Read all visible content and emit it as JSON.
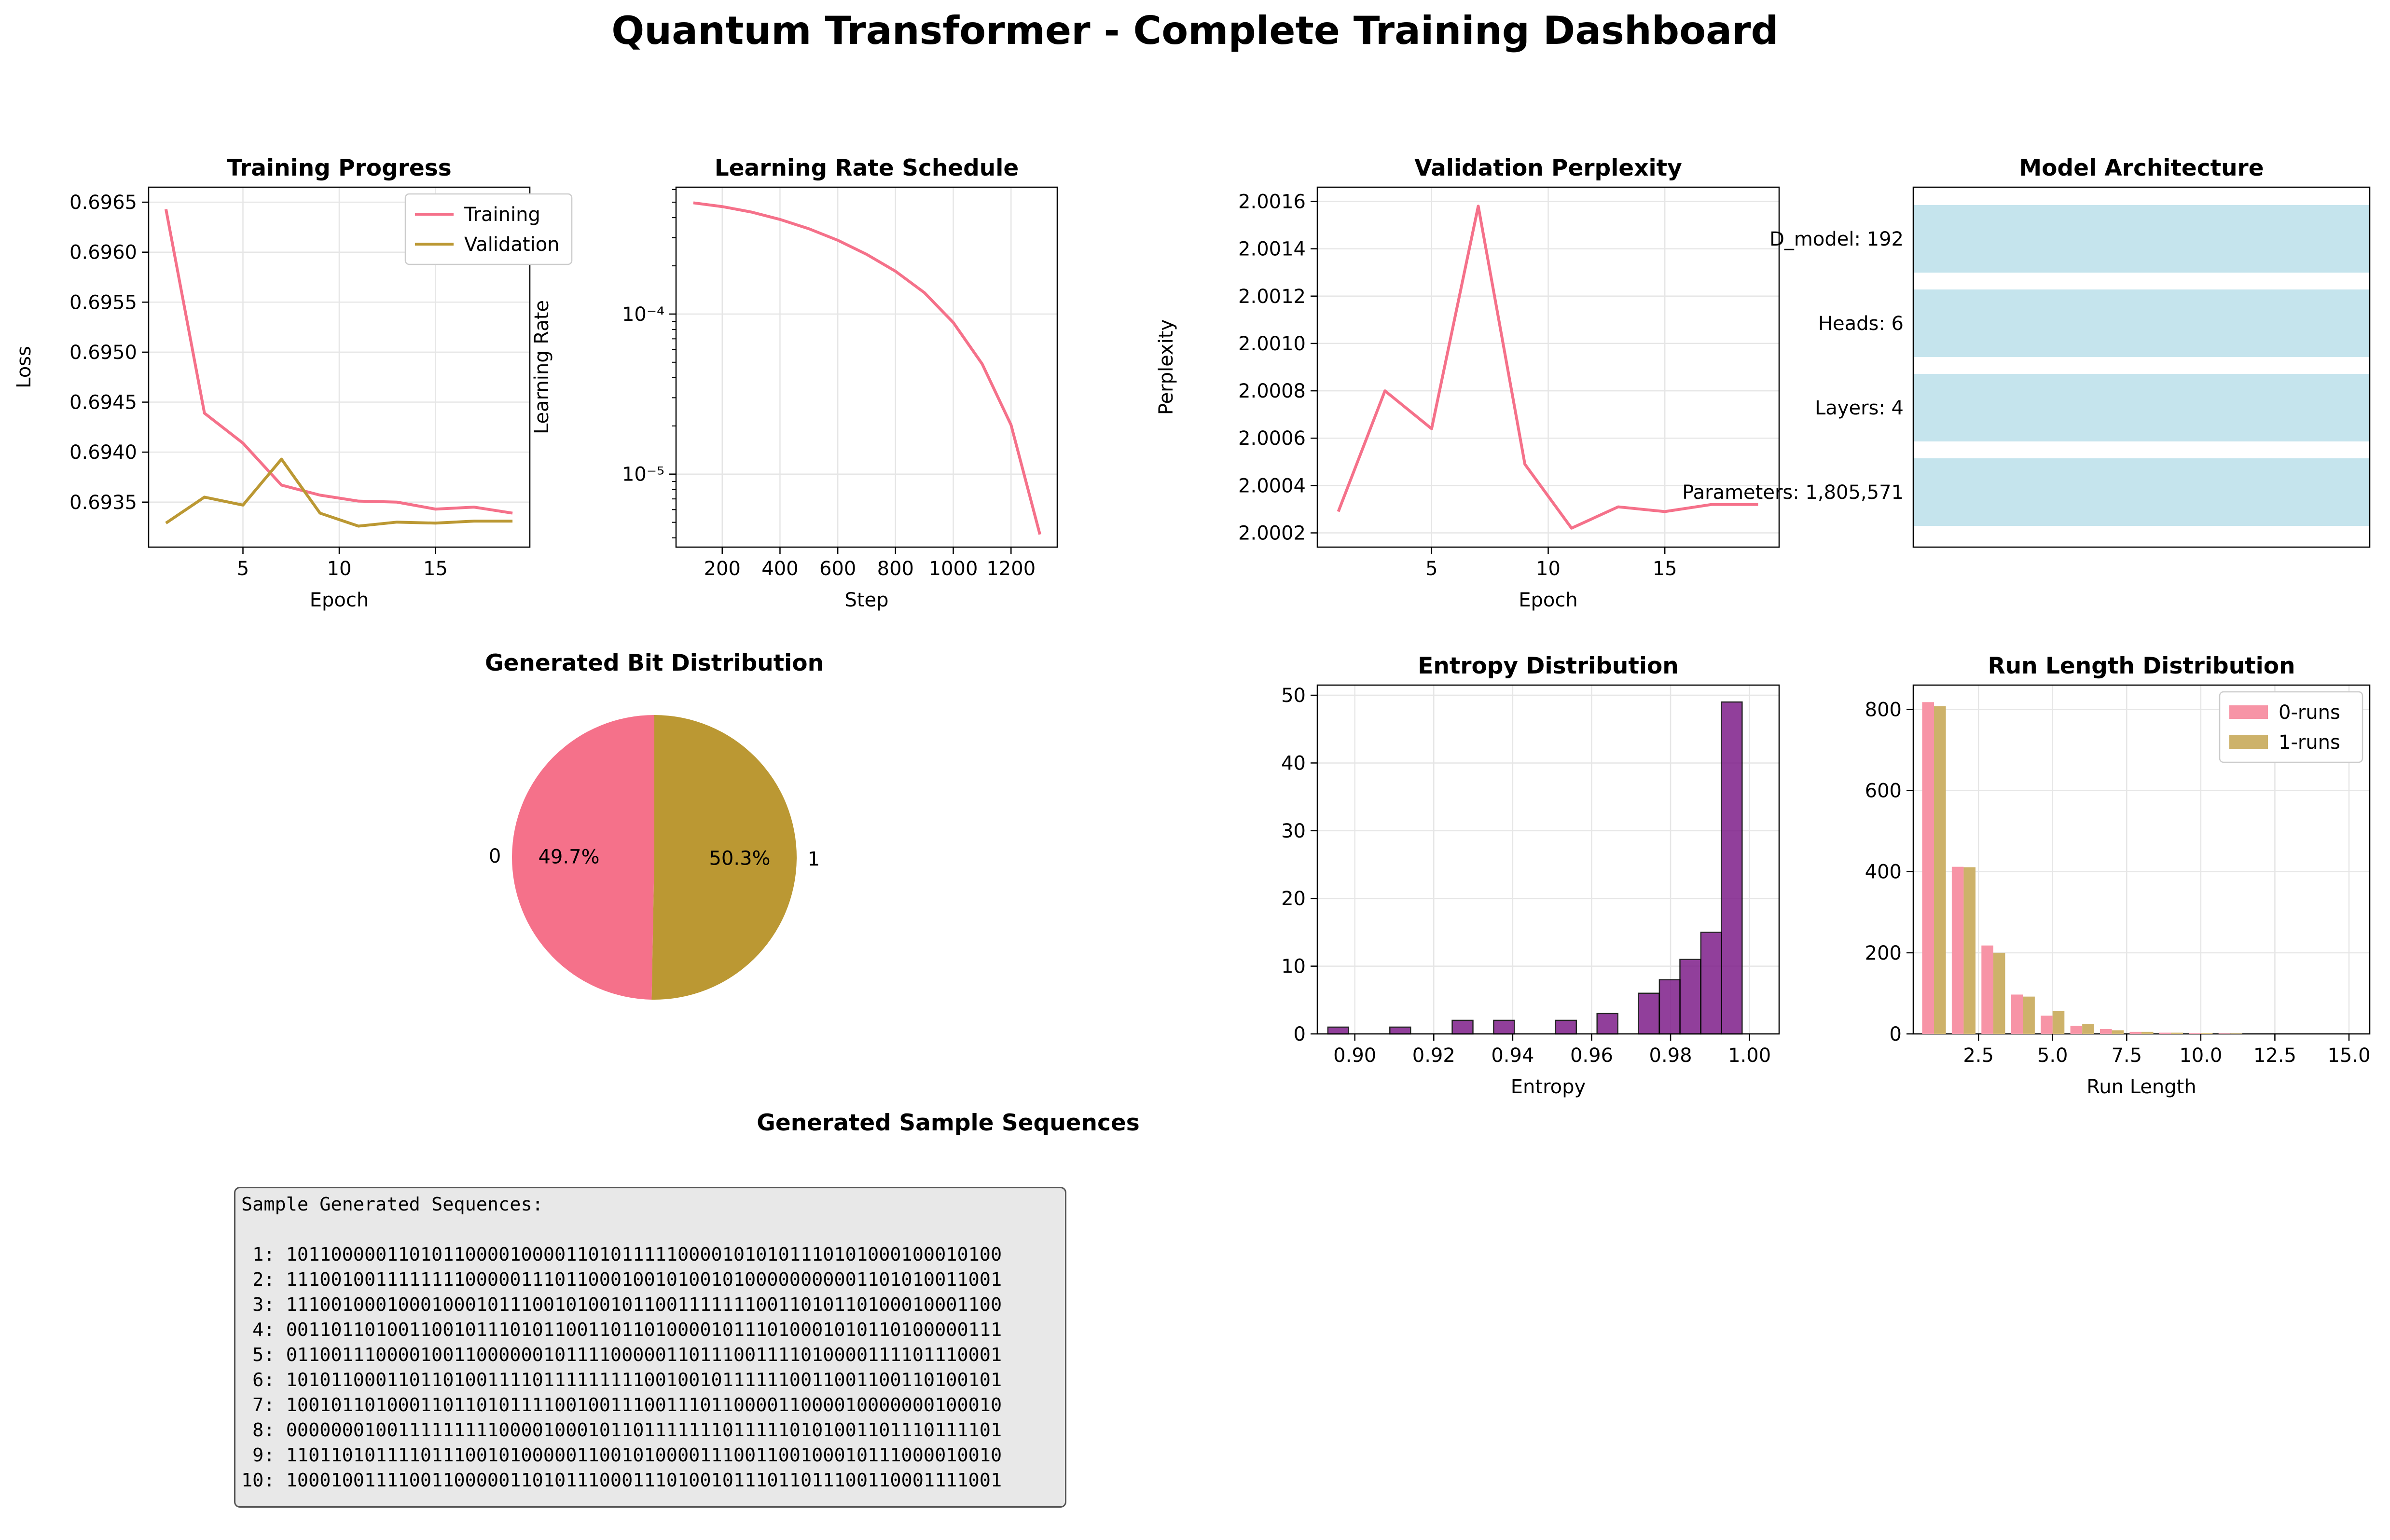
{
  "page_title": "Quantum Transformer - Complete Training Dashboard",
  "colors": {
    "pink": "#f5718a",
    "olive": "#bb9833",
    "purple": "#7e1e8a",
    "lightblue": "#add8e6",
    "grid": "#e6e6e6"
  },
  "chart_data": [
    {
      "id": "training",
      "type": "line",
      "title": "Training Progress",
      "xlabel": "Epoch",
      "ylabel": "Loss",
      "xlim": [
        0.1,
        19.9
      ],
      "ylim": [
        0.69305,
        0.69665
      ],
      "xticks": [
        5,
        10,
        15
      ],
      "yticks": [
        0.6935,
        0.694,
        0.6945,
        0.695,
        0.6955,
        0.696,
        0.6965
      ],
      "ytick_labels": [
        "0.6935",
        "0.6940",
        "0.6945",
        "0.6950",
        "0.6955",
        "0.6960",
        "0.6965"
      ],
      "x": [
        1,
        3,
        5,
        7,
        9,
        11,
        13,
        15,
        17,
        19
      ],
      "series": [
        {
          "name": "Training",
          "color": "#f5718a",
          "values": [
            0.69643,
            0.69439,
            0.69409,
            0.69367,
            0.69357,
            0.69351,
            0.6935,
            0.69343,
            0.69345,
            0.69339
          ]
        },
        {
          "name": "Validation",
          "color": "#bb9833",
          "values": [
            0.69329,
            0.69355,
            0.69347,
            0.69393,
            0.69339,
            0.69326,
            0.6933,
            0.69329,
            0.69331,
            0.69331
          ]
        }
      ],
      "legend": "top-right"
    },
    {
      "id": "lr",
      "type": "line",
      "title": "Learning Rate Schedule",
      "xlabel": "Step",
      "ylabel": "Learning Rate",
      "yscale": "log",
      "xlim": [
        40,
        1360
      ],
      "ylim": [
        3.5e-06,
        0.00062
      ],
      "xticks": [
        200,
        400,
        600,
        800,
        1000,
        1200
      ],
      "yticks": [
        1e-05,
        0.0001
      ],
      "ytick_labels": [
        "10⁻⁵",
        "10⁻⁴"
      ],
      "x": [
        100,
        200,
        300,
        400,
        500,
        600,
        700,
        800,
        900,
        1000,
        1100,
        1200,
        1300
      ],
      "series": [
        {
          "name": "",
          "color": "#f5718a",
          "values": [
            0.000495,
            0.000469,
            0.000434,
            0.00039,
            0.000341,
            0.000289,
            0.000236,
            0.000185,
            0.000136,
            8.85e-05,
            4.88e-05,
            2.03e-05,
            4.2e-06
          ]
        }
      ]
    },
    {
      "id": "perplexity",
      "type": "line",
      "title": "Validation Perplexity",
      "xlabel": "Epoch",
      "ylabel": "Perplexity",
      "xlim": [
        0.1,
        19.9
      ],
      "ylim": [
        2.00014,
        2.00166
      ],
      "xticks": [
        5,
        10,
        15
      ],
      "yticks": [
        2.0002,
        2.0004,
        2.0006,
        2.0008,
        2.001,
        2.0012,
        2.0014,
        2.0016
      ],
      "ytick_labels": [
        "2.0002",
        "2.0004",
        "2.0006",
        "2.0008",
        "2.0010",
        "2.0012",
        "2.0014",
        "2.0016"
      ],
      "x": [
        1,
        3,
        5,
        7,
        9,
        11,
        13,
        15,
        17,
        19
      ],
      "series": [
        {
          "name": "",
          "color": "#f5718a",
          "values": [
            2.00029,
            2.0008,
            2.00064,
            2.00158,
            2.00049,
            2.00022,
            2.00031,
            2.00029,
            2.00032,
            2.00032
          ]
        }
      ]
    },
    {
      "id": "architecture",
      "type": "bar",
      "title": "Model Architecture",
      "orientation": "horizontal",
      "categories": [
        "D_model: 192",
        "Heads: 6",
        "Layers: 4",
        "Parameters: 1,805,571"
      ],
      "values": [
        1,
        1,
        1,
        1
      ],
      "color": "#add8e6"
    },
    {
      "id": "bits",
      "type": "pie",
      "title": "Generated Bit Distribution",
      "slices": [
        {
          "label": "0",
          "value": 49.7,
          "pct_label": "49.7%",
          "color": "#f5718a"
        },
        {
          "label": "1",
          "value": 50.3,
          "pct_label": "50.3%",
          "color": "#bb9833"
        }
      ]
    },
    {
      "id": "entropy",
      "type": "bar",
      "title": "Entropy Distribution",
      "xlabel": "Entropy",
      "xlim": [
        0.8905,
        1.0075
      ],
      "ylim": [
        0,
        51.5
      ],
      "xticks": [
        0.9,
        0.92,
        0.94,
        0.96,
        0.98,
        1.0
      ],
      "xtick_labels": [
        "0.90",
        "0.92",
        "0.94",
        "0.96",
        "0.98",
        "1.00"
      ],
      "yticks": [
        0,
        10,
        20,
        30,
        40,
        50
      ],
      "bin_width": 0.00525,
      "bins": [
        0.8958,
        0.901,
        0.9063,
        0.9115,
        0.9168,
        0.922,
        0.9273,
        0.9325,
        0.9378,
        0.943,
        0.9483,
        0.9535,
        0.9588,
        0.964,
        0.9693,
        0.9745,
        0.9798,
        0.985,
        0.9903,
        0.9955
      ],
      "counts": [
        1,
        0,
        0,
        1,
        0,
        0,
        2,
        0,
        2,
        0,
        0,
        2,
        0,
        3,
        0,
        6,
        8,
        11,
        15,
        49
      ],
      "color": "#7e1e8a"
    },
    {
      "id": "runs",
      "type": "bar",
      "title": "Run Length Distribution",
      "xlabel": "Run Length",
      "xlim": [
        0.3,
        15.7
      ],
      "ylim": [
        0,
        860
      ],
      "xticks": [
        2.5,
        5.0,
        7.5,
        10.0,
        12.5,
        15.0
      ],
      "xtick_labels": [
        "2.5",
        "5.0",
        "7.5",
        "10.0",
        "12.5",
        "15.0"
      ],
      "yticks": [
        0,
        200,
        400,
        600,
        800
      ],
      "categories": [
        1,
        2,
        3,
        4,
        5,
        6,
        7,
        8,
        9,
        10,
        11,
        12,
        13,
        14,
        15
      ],
      "series": [
        {
          "name": "0-runs",
          "color": "#f794a6",
          "values": [
            818,
            412,
            218,
            97,
            45,
            20,
            12,
            5,
            3,
            2,
            1,
            0,
            0,
            0,
            0
          ]
        },
        {
          "name": "1-runs",
          "color": "#cdb26a",
          "values": [
            808,
            411,
            200,
            92,
            56,
            25,
            9,
            5,
            3,
            2,
            1,
            0,
            0,
            0,
            0
          ]
        }
      ],
      "legend": "top-right"
    }
  ],
  "samples": {
    "title": "Generated Sample Sequences",
    "header": "Sample Generated Sequences:",
    "lines": [
      " 1: 1011000001101011000010000110101111100001010101110101000100010100",
      " 2: 1110010011111111000001110110001001010010100000000001101010011001",
      " 3: 1110010001000100010111001010010110011111110011010110100010001100",
      " 4: 0011011010011001011101011001101101000010111010001010110100000111",
      " 5: 0110011100001001100000010111100000110111001111010000111101110001",
      " 6: 1010110001101101001111011111111100100101111110011001100110100101",
      " 7: 1001011010001101101011110010011100111011000011000010000000100010",
      " 8: 0000000100111111111000010001011011111110111110101001101110111101",
      " 9: 1101101011110111001010000011001010000111001100100010111000010010",
      "10: 1000100111100110000011010111000111010010111011011100110001111001"
    ]
  }
}
